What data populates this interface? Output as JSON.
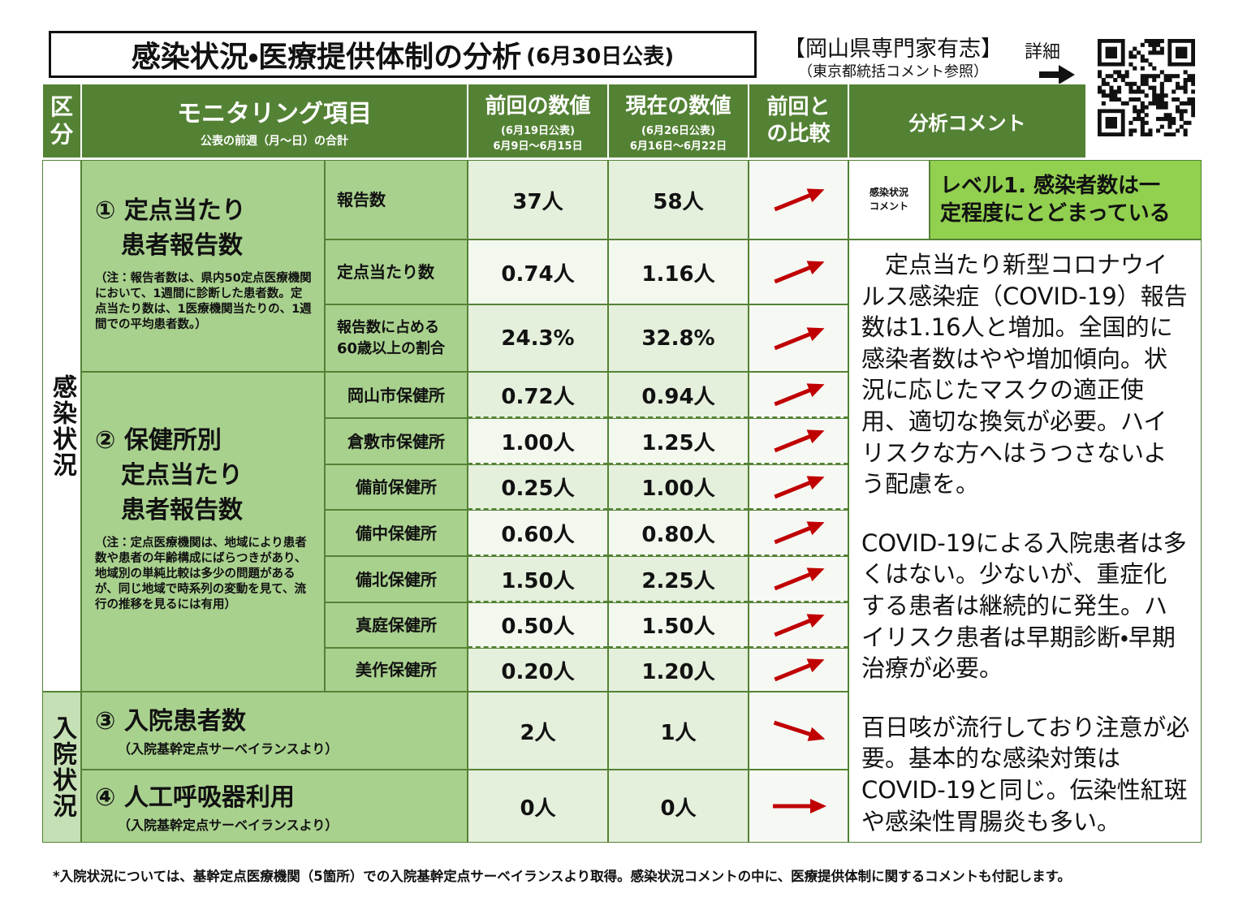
{
  "header": {
    "title": "感染状況・医療提供体制の分析",
    "date": "(6月30日公表)",
    "org": "【岡山県専門家有志】",
    "org_note": "（東京都統括コメント参照）",
    "detail": "詳細"
  },
  "table": {
    "columns": {
      "category": [
        "区",
        "分"
      ],
      "item": "モニタリング項目",
      "item_note": "公表の前週（月～日）の合計",
      "previous": "前回の数値",
      "previous_note1": "(6月19日公表)",
      "previous_note2": "6月9日～6月15日",
      "current": "現在の数値",
      "current_note1": "(6月26日公表)",
      "current_note2": "6月16日～6月22日",
      "comparison": [
        "前回と",
        "の比較"
      ],
      "comment": "分析コメント"
    },
    "categories": [
      "感染状況",
      "入院状況"
    ],
    "sections": [
      {
        "title": [
          "① 定点当たり",
          "患者報告数"
        ],
        "note": "（注：報告者数は、県内50定点医療機関において、1週間に診断した患者数。定点当たり数は、1医療機関当たりの、1週間での平均患者数。）",
        "rows": [
          {
            "label": [
              "報告数"
            ],
            "previous": "37人",
            "current": "58人"
          },
          {
            "label": [
              "定点当たり数"
            ],
            "previous": "0.74人",
            "current": "1.16人"
          },
          {
            "label": [
              "報告数に占める",
              "60歳以上の割合"
            ],
            "previous": "24.3%",
            "current": "32.8%"
          }
        ]
      },
      {
        "title": [
          "② 保健所別",
          "定点当たり",
          "患者報告数"
        ],
        "note": "（注：定点医療機関は、地域により患者数や患者の年齢構成にばらつきがあり、地域別の単純比較は多少の問題があるが、同じ地域で時系列の変動を見て、流行の推移を見るには有用）",
        "rows": [
          {
            "label": [
              "岡山市保健所"
            ],
            "previous": "0.72人",
            "current": "0.94人"
          },
          {
            "label": [
              "倉敷市保健所"
            ],
            "previous": "1.00人",
            "current": "1.25人"
          },
          {
            "label": [
              "備前保健所"
            ],
            "previous": "0.25人",
            "current": "1.00人"
          },
          {
            "label": [
              "備中保健所"
            ],
            "previous": "0.60人",
            "current": "0.80人"
          },
          {
            "label": [
              "備北保健所"
            ],
            "previous": "1.50人",
            "current": "2.25人"
          },
          {
            "label": [
              "真庭保健所"
            ],
            "previous": "0.50人",
            "current": "1.50人"
          },
          {
            "label": [
              "美作保健所"
            ],
            "previous": "0.20人",
            "current": "1.20人"
          }
        ]
      },
      {
        "title": [
          "③ 入院患者数"
        ],
        "note": "（入院基幹定点サーベイランスより）",
        "rows": [
          {
            "previous": "2人",
            "current": "1人"
          }
        ]
      },
      {
        "title": [
          "④ 人工呼吸器利用"
        ],
        "note": "（入院基幹定点サーベイランスより）",
        "rows": [
          {
            "previous": "0人",
            "current": "0人"
          }
        ]
      }
    ],
    "comment": {
      "label": [
        "感染状況",
        "コメント"
      ],
      "level": [
        "レベル1. 感染者数は一",
        "定程度にとどまっている"
      ],
      "paragraphs": [
        "定点当たり新型コロナウイルス感染症（COVID-19）報告数は1.16人と増加。全国的に感染者数はやや増加傾向。状況に応じたマスクの適正使用、適切な換気が必要。ハイリスクな方へはうつさないよう配慮を。",
        "COVID-19による入院患者は多くはない。少ないが、重症化する患者は継続的に発生。ハイリスク患者は早期診断・早期治療が必要。",
        "百日咳が流行しており注意が必要。基本的な感染対策はCOVID-19と同じ。伝染性紅斑や感染性胃腸炎も多い。"
      ]
    }
  },
  "footnote": "*入院状況については、基幹定点医療機関（5箇所）での入院基幹定点サーベイランスより取得。感染状況コメントの中に、医療提供体制に関するコメントも付記します。"
}
